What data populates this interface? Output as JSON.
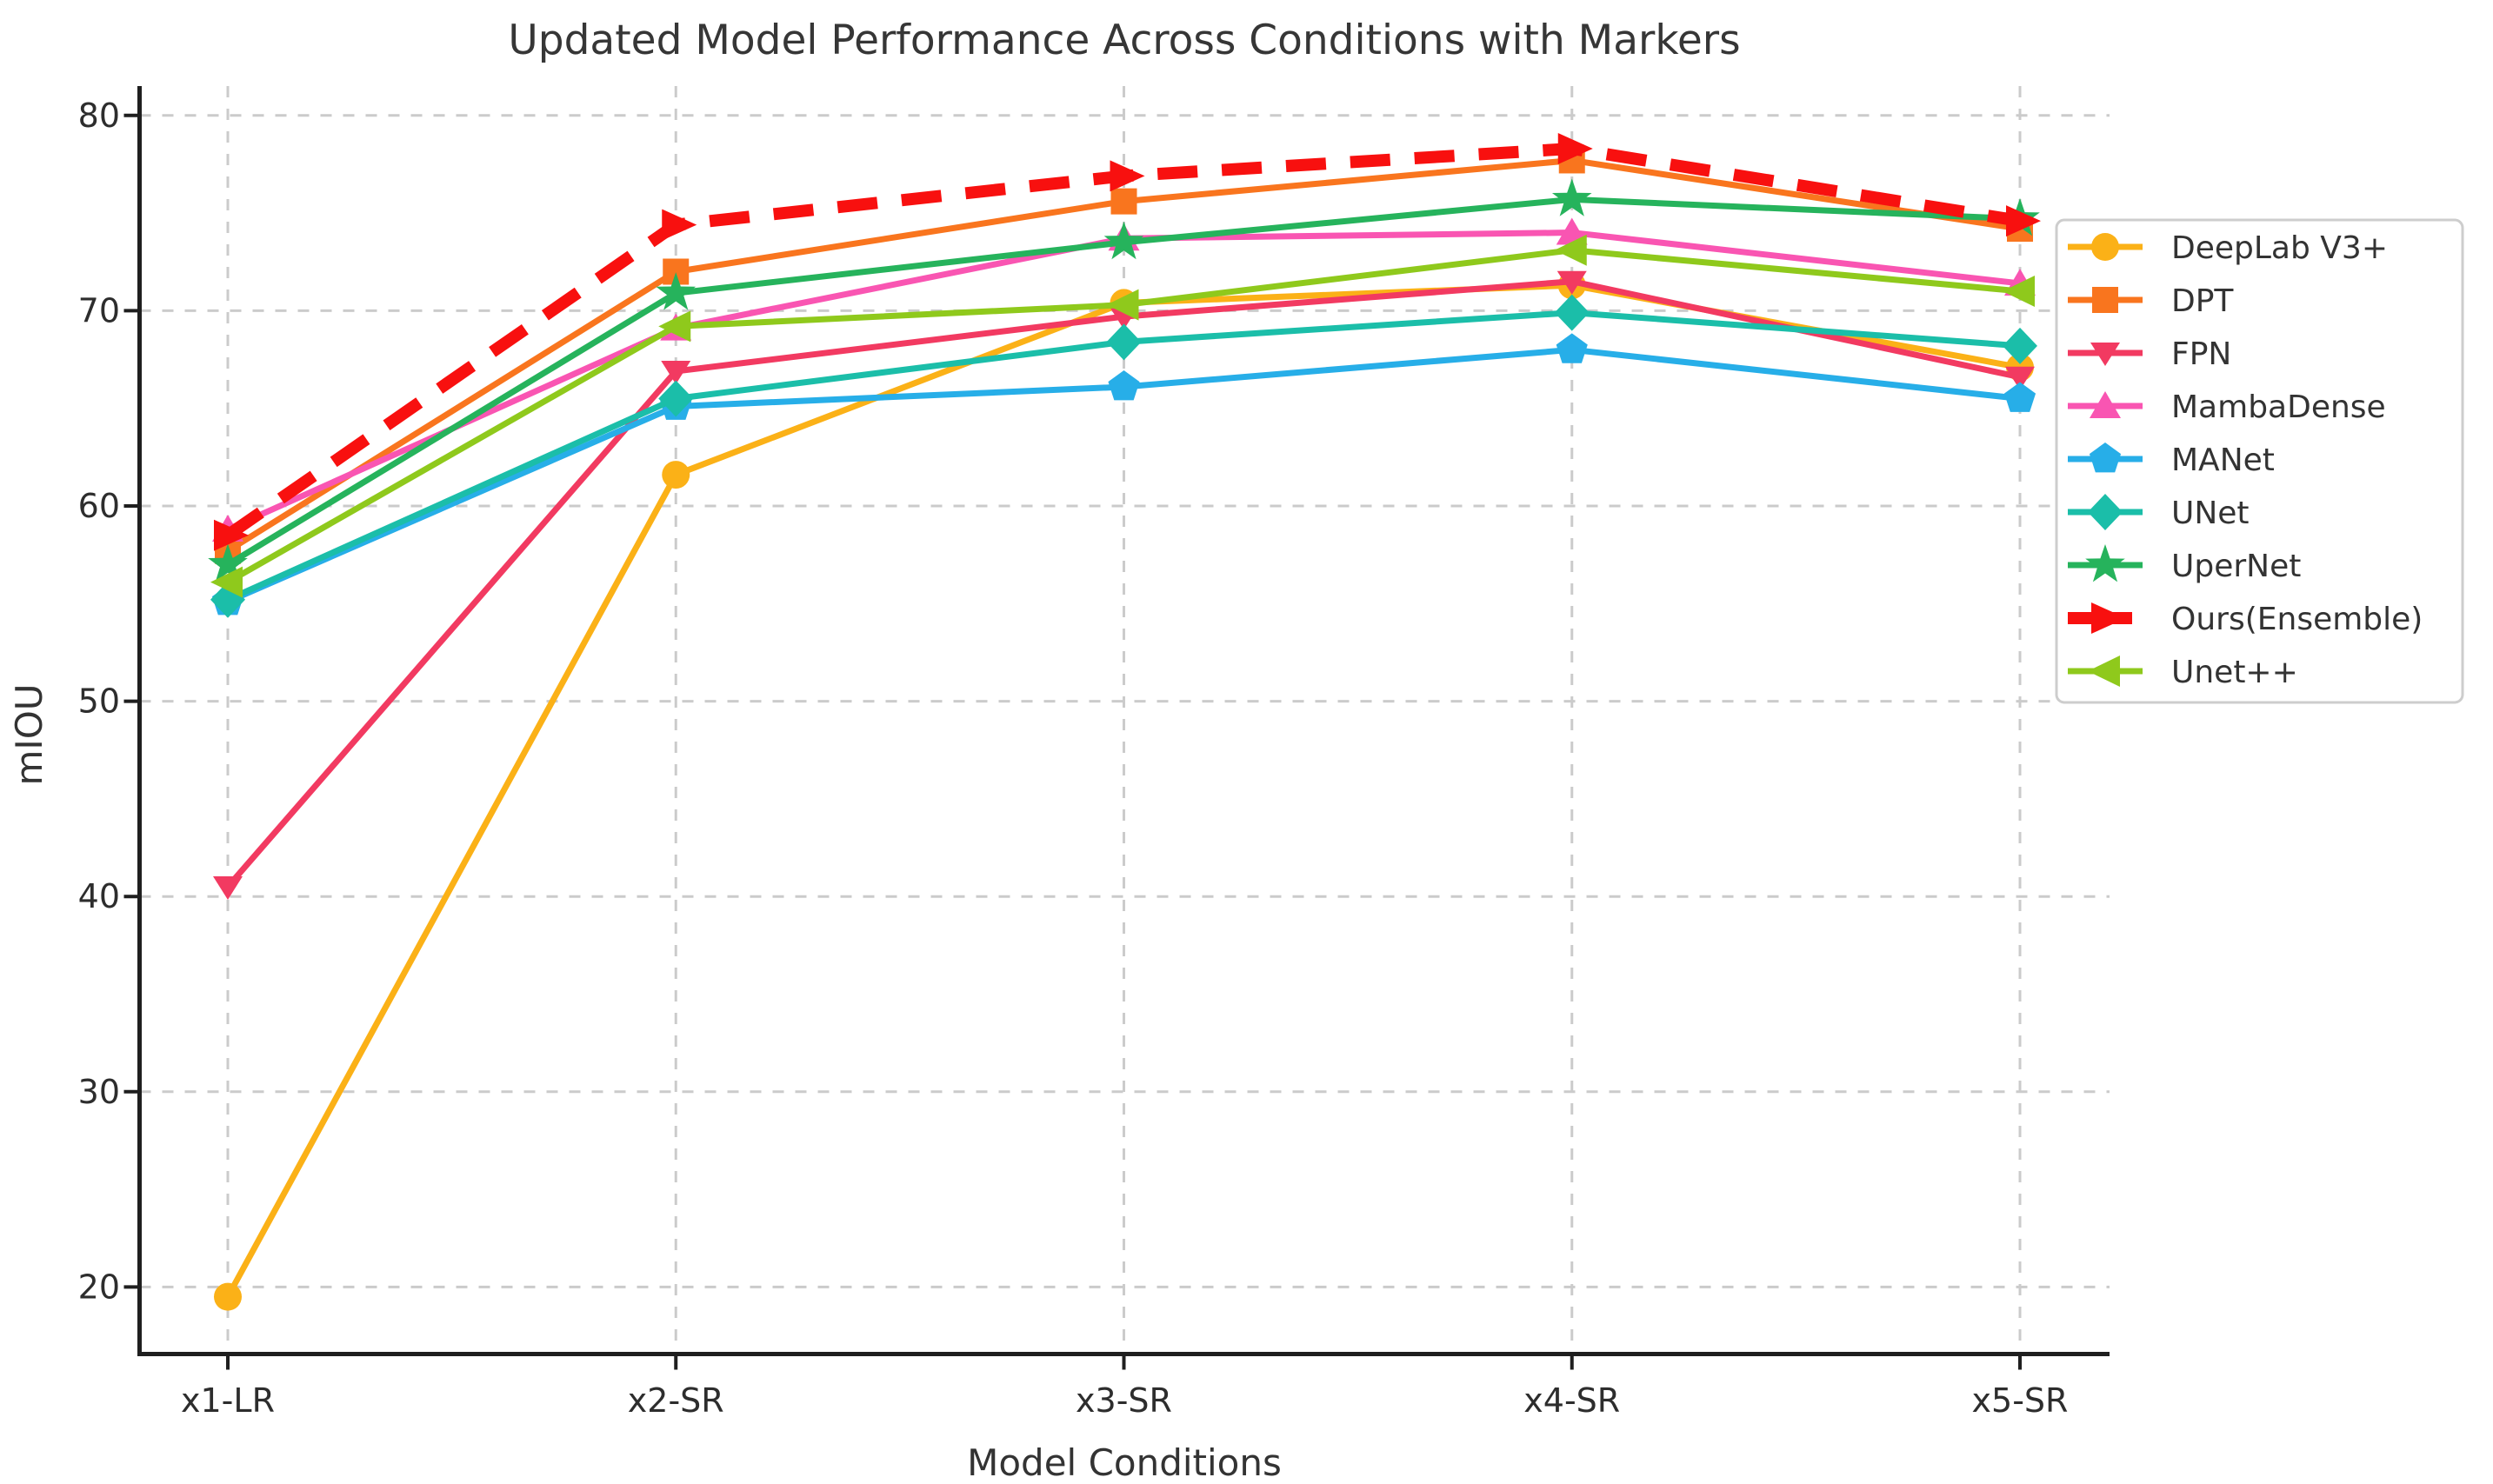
{
  "chart_data": {
    "type": "line",
    "title": "Updated Model Performance Across Conditions with Markers",
    "xlabel": "Model Conditions",
    "ylabel": "mIOU",
    "categories": [
      "x1-LR",
      "x2-SR",
      "x3-SR",
      "x4-SR",
      "x5-SR"
    ],
    "yticks": [
      80,
      70,
      60,
      50,
      40,
      30,
      20
    ],
    "ylim": [
      16.6,
      81.5
    ],
    "grid": "dashed-both-axes",
    "legend_position": "right",
    "series": [
      {
        "name": "DeepLab V3+",
        "color": "#FBB117",
        "marker": "circle",
        "line": "solid",
        "values": [
          19.5,
          61.6,
          70.4,
          71.3,
          67.1
        ]
      },
      {
        "name": "DPT",
        "color": "#F9751E",
        "marker": "square",
        "line": "solid",
        "values": [
          57.7,
          72.0,
          75.6,
          77.7,
          74.2
        ]
      },
      {
        "name": "FPN",
        "color": "#F23A61",
        "marker": "triangle-down",
        "line": "solid",
        "values": [
          40.5,
          66.9,
          69.7,
          71.5,
          66.6
        ]
      },
      {
        "name": "MambaDense",
        "color": "#F955B2",
        "marker": "triangle-up",
        "line": "solid",
        "values": [
          58.8,
          69.1,
          73.7,
          74.0,
          71.4
        ]
      },
      {
        "name": "MANet",
        "color": "#27AEE8",
        "marker": "pentagon",
        "line": "solid",
        "values": [
          55.1,
          65.1,
          66.1,
          68.0,
          65.5
        ]
      },
      {
        "name": "UNet",
        "color": "#1BBEA9",
        "marker": "diamond",
        "line": "solid",
        "values": [
          55.2,
          65.5,
          68.4,
          69.9,
          68.2
        ]
      },
      {
        "name": "UperNet",
        "color": "#26B35C",
        "marker": "star",
        "line": "solid",
        "values": [
          57.0,
          70.9,
          73.5,
          75.7,
          74.7
        ]
      },
      {
        "name": "Ours(Ensemble)",
        "color": "#F8100F",
        "marker": "arrow-right",
        "line": "dashed",
        "values": [
          58.5,
          74.4,
          76.9,
          78.3,
          74.6
        ]
      },
      {
        "name": "Unet++",
        "color": "#8FC91C",
        "marker": "triangle-left",
        "line": "solid",
        "values": [
          56.1,
          69.2,
          70.3,
          73.1,
          71.0
        ]
      }
    ]
  }
}
